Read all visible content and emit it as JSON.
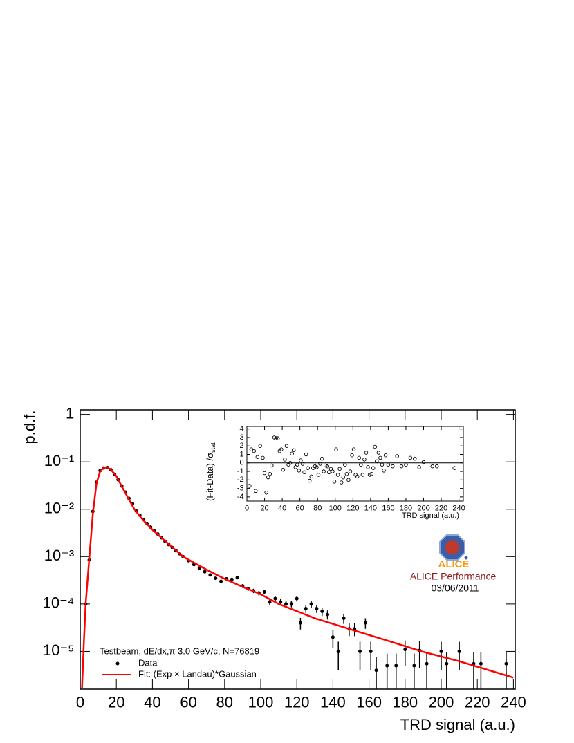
{
  "chart_data": [
    {
      "type": "scatter",
      "log_y": true,
      "y_label": "p.d.f.",
      "x_label": "TRD signal (a.u.)",
      "xlim": [
        0,
        241
      ],
      "ylim": [
        1.6e-06,
        1.25
      ],
      "xticks": [
        0,
        20,
        40,
        60,
        80,
        100,
        120,
        140,
        160,
        180,
        200,
        220,
        240
      ],
      "yticks": [
        {
          "value": 1e-05,
          "label": "10⁻⁵"
        },
        {
          "value": 0.0001,
          "label": "10⁻⁴"
        },
        {
          "value": 0.001,
          "label": "10⁻³"
        },
        {
          "value": 0.01,
          "label": "10⁻²"
        },
        {
          "value": 0.1,
          "label": "10⁻¹"
        },
        1
      ],
      "legend": "bottom-left",
      "legend_title": "Testbeam, dE/dx,π 3.0 GeV/c, N=76819",
      "series": [
        {
          "name": "Data",
          "type": "points",
          "color": "#000000",
          "x": [
            3,
            5,
            7,
            9,
            11,
            13,
            15,
            17,
            19,
            21,
            23,
            25,
            27,
            29,
            31,
            33,
            35,
            37,
            39,
            41,
            43,
            45,
            47,
            49,
            51,
            53,
            55,
            57,
            60,
            63,
            66,
            69,
            72,
            75,
            78,
            81,
            84,
            87,
            90,
            93,
            96,
            99,
            102,
            105,
            108,
            111,
            114,
            117,
            120,
            122,
            125,
            128,
            131,
            134,
            137,
            140,
            143,
            146,
            149,
            152,
            155,
            158,
            161,
            164,
            170,
            175,
            180,
            185,
            188,
            192,
            200,
            203,
            210,
            218,
            222,
            236
          ],
          "values": [
            0.0001,
            0.00085,
            0.009,
            0.037,
            0.065,
            0.074,
            0.076,
            0.068,
            0.055,
            0.042,
            0.031,
            0.023,
            0.017,
            0.013,
            0.0092,
            0.0075,
            0.0061,
            0.005,
            0.0042,
            0.0035,
            0.003,
            0.0025,
            0.0021,
            0.0018,
            0.00155,
            0.00133,
            0.00115,
            0.001,
            0.00082,
            0.00068,
            0.00057,
            0.00048,
            0.00041,
            0.00035,
            0.0003,
            0.00034,
            0.00033,
            0.00036,
            0.00024,
            0.00021,
            0.00019,
            0.00017,
            0.00018,
            0.00011,
            0.00013,
            0.00011,
            0.0001,
            0.0001,
            0.00013,
            4e-05,
            8e-05,
            0.0001,
            8e-05,
            7e-05,
            6e-05,
            2e-05,
            1e-05,
            5e-05,
            3e-05,
            3e-05,
            1e-05,
            4e-05,
            1e-05,
            4e-06,
            5e-06,
            5e-06,
            1.1e-05,
            5e-06,
            1.05e-05,
            5.5e-06,
            1e-05,
            5.5e-06,
            1e-05,
            5.5e-06,
            5.5e-06,
            5.5e-06
          ],
          "errors": [
            1.5e-05,
            6e-05,
            0.0003,
            0.0008,
            0.001,
            0.001,
            0.001,
            0.001,
            0.0009,
            0.0008,
            0.0007,
            0.0005,
            0.0004,
            0.0003,
            0.00025,
            0.0002,
            0.00018,
            0.00015,
            0.00013,
            0.00011,
            0.0001,
            9e-05,
            8e-05,
            7e-05,
            6e-05,
            5.5e-05,
            5e-05,
            4.5e-05,
            4e-05,
            3.5e-05,
            3.2e-05,
            3e-05,
            2.8e-05,
            2.6e-05,
            2.4e-05,
            2.6e-05,
            2.6e-05,
            2.7e-05,
            2.2e-05,
            2.1e-05,
            2e-05,
            1.9e-05,
            2e-05,
            1.6e-05,
            1.7e-05,
            1.6e-05,
            1.5e-05,
            1.5e-05,
            1.7e-05,
            1.1e-05,
            1.5e-05,
            1.6e-05,
            1.5e-05,
            1.4e-05,
            1.3e-05,
            8e-06,
            6e-06,
            1.2e-05,
            9e-06,
            9e-06,
            6e-06,
            1e-05,
            6e-06,
            3.5e-06,
            4e-06,
            4e-06,
            6e-06,
            4e-06,
            6e-06,
            4e-06,
            6e-06,
            4e-06,
            6e-06,
            4e-06,
            4e-06,
            4e-06
          ]
        },
        {
          "name": "Fit: (Exp × Landau)*Gaussian",
          "type": "line",
          "color": "#ff0000",
          "x": [
            1,
            2,
            3,
            5,
            7,
            9,
            11,
            13,
            15,
            17,
            20,
            25,
            30,
            35,
            40,
            50,
            57,
            70,
            80,
            90,
            100,
            110,
            130,
            150,
            170,
            190,
            210,
            240
          ],
          "values": [
            1.7e-06,
            1.5e-05,
            0.0001,
            0.0009,
            0.008,
            0.035,
            0.063,
            0.075,
            0.077,
            0.068,
            0.05,
            0.022,
            0.01,
            0.0058,
            0.0037,
            0.0017,
            0.001,
            0.00053,
            0.00034,
            0.00023,
            0.00016,
            0.0001,
            5e-05,
            2.9e-05,
            1.7e-05,
            9.8e-06,
            6.2e-06,
            2.8e-06
          ]
        }
      ],
      "annotations": [
        {
          "text": "ALICE Performance",
          "color": "#8b1a1a"
        },
        {
          "text": "03/06/2011",
          "color": "#000000"
        }
      ],
      "logo_text": "ALICE"
    },
    {
      "type": "scatter",
      "x_label": "TRD signal (a.u.)",
      "y_label": "(Fit-Data) /σ",
      "y_label_subscript": "stat",
      "xlim": [
        0,
        245
      ],
      "ylim": [
        -4.5,
        4.3
      ],
      "hline": 0,
      "xticks": [
        0,
        20,
        40,
        60,
        80,
        100,
        120,
        140,
        160,
        180,
        200,
        220,
        240
      ],
      "yticks": [
        -4,
        -3,
        -2,
        -1,
        0,
        1,
        2,
        3,
        4
      ],
      "series": [
        {
          "marker": "open-circle",
          "color": "#000000",
          "x": [
            3,
            5,
            8,
            10,
            12,
            15,
            18,
            20,
            22,
            24,
            26,
            28,
            31,
            33,
            35,
            37,
            39,
            41,
            43,
            45,
            47,
            49,
            51,
            53,
            55,
            57,
            59,
            61,
            63,
            65,
            67,
            69,
            71,
            73,
            75,
            77,
            79,
            81,
            83,
            85,
            87,
            89,
            91,
            93,
            95,
            97,
            99,
            101,
            103,
            105,
            107,
            109,
            111,
            113,
            115,
            117,
            119,
            121,
            123,
            125,
            127,
            129,
            131,
            133,
            135,
            137,
            139,
            141,
            143,
            145,
            147,
            149,
            151,
            153,
            155,
            157,
            160,
            165,
            170,
            175,
            180,
            185,
            190,
            195,
            200,
            210,
            215,
            235
          ],
          "values": [
            -2.7,
            1.6,
            1.4,
            -3.3,
            0.7,
            2.0,
            0.6,
            -1.2,
            -3.5,
            -1.7,
            -1.3,
            -0.3,
            3.0,
            2.9,
            2.9,
            1.4,
            1.6,
            -0.8,
            0.4,
            2.0,
            -0.2,
            0.0,
            1.1,
            1.5,
            -0.5,
            -0.2,
            -0.9,
            0.3,
            -0.1,
            -1.1,
            1.0,
            -0.6,
            -2.1,
            -1.6,
            -0.6,
            -0.4,
            -0.5,
            -1.4,
            -0.1,
            0.5,
            -1.0,
            -0.3,
            -0.4,
            -1.1,
            -0.7,
            -1.0,
            -2.2,
            1.6,
            -1.4,
            -0.7,
            -2.3,
            -1.7,
            -0.2,
            -1.3,
            -2.0,
            -1.0,
            0.9,
            1.6,
            -1.4,
            -1.6,
            0.6,
            -0.2,
            -1.4,
            0.4,
            1.2,
            -0.5,
            -1.4,
            -1.3,
            -0.6,
            1.9,
            0.2,
            1.2,
            0.6,
            -0.2,
            -0.9,
            0.9,
            -0.2,
            -0.4,
            0.8,
            -0.4,
            -0.2,
            0.6,
            0.5,
            -0.5,
            0.1,
            -0.4,
            -0.4,
            -0.6
          ]
        }
      ]
    }
  ]
}
